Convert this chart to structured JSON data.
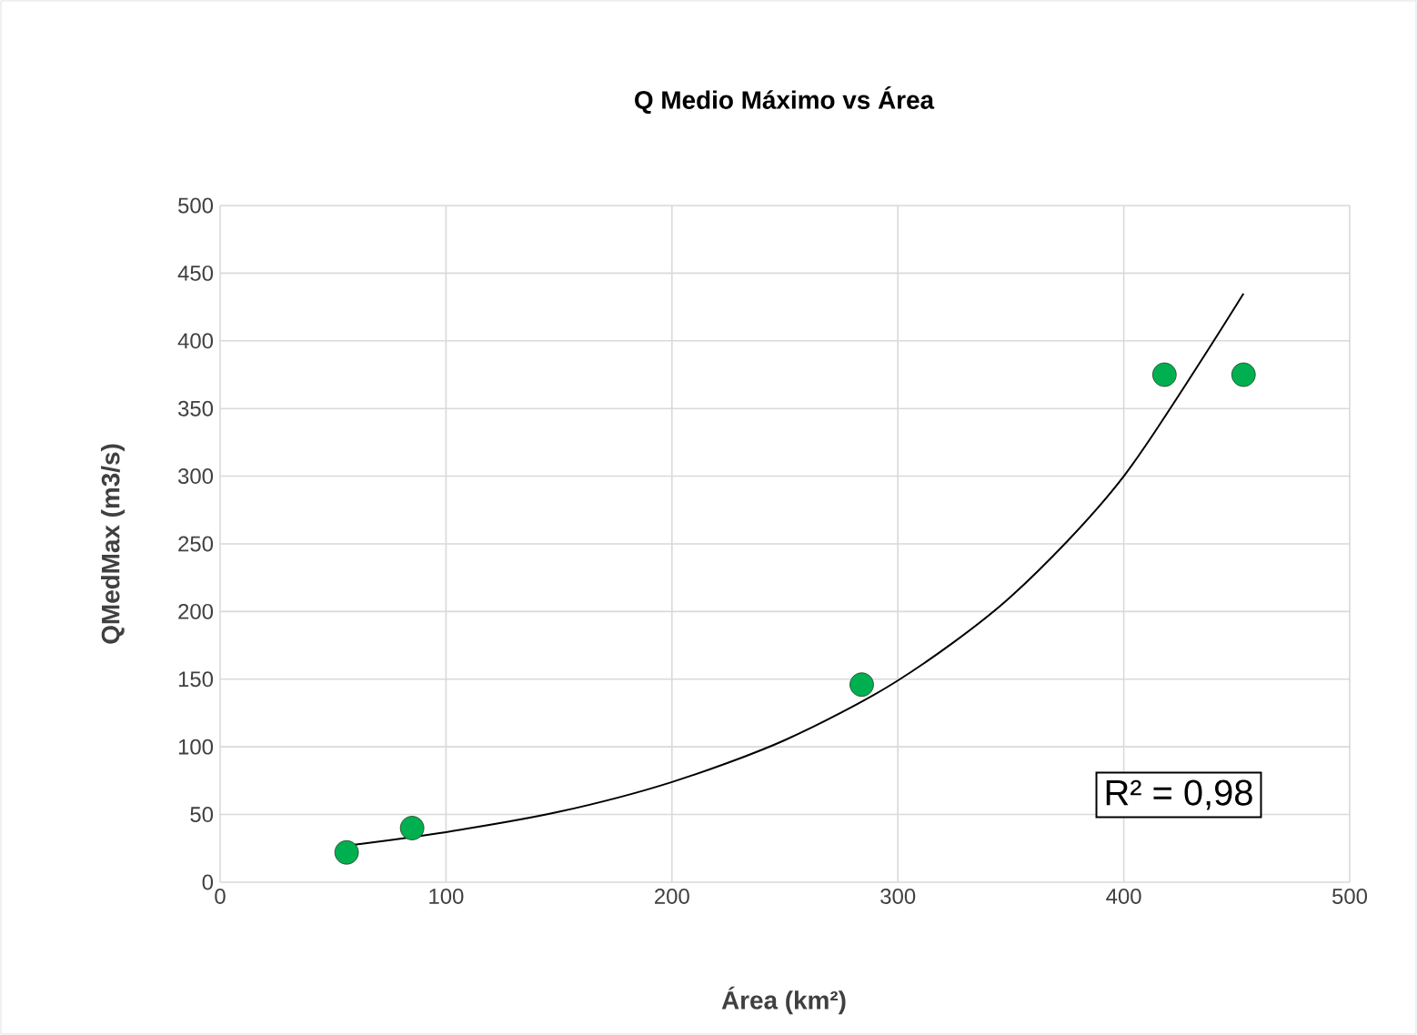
{
  "chart_data": {
    "type": "scatter",
    "title": "Q Medio Máximo vs Área",
    "xlabel": "Área (km²)",
    "ylabel": "QMedMax (m3/s)",
    "xlim": [
      0,
      500
    ],
    "xticks": [
      0,
      100,
      200,
      300,
      400,
      500
    ],
    "ylim": [
      0,
      500
    ],
    "yticks": [
      0,
      50,
      100,
      150,
      200,
      250,
      300,
      350,
      400,
      450,
      500
    ],
    "grid": true,
    "series": [
      {
        "color": "#00b050",
        "x": [
          56,
          85,
          284,
          418,
          453
        ],
        "values": [
          22,
          40,
          146,
          375,
          375
        ]
      },
      {
        "type": "line",
        "color": "#000000",
        "x": [
          56,
          100,
          150,
          200,
          250,
          300,
          350,
          400,
          453
        ],
        "values": [
          27,
          37,
          52,
          74,
          105,
          149,
          211,
          300,
          435
        ]
      }
    ],
    "annotations": [
      "R² = 0,98"
    ]
  }
}
